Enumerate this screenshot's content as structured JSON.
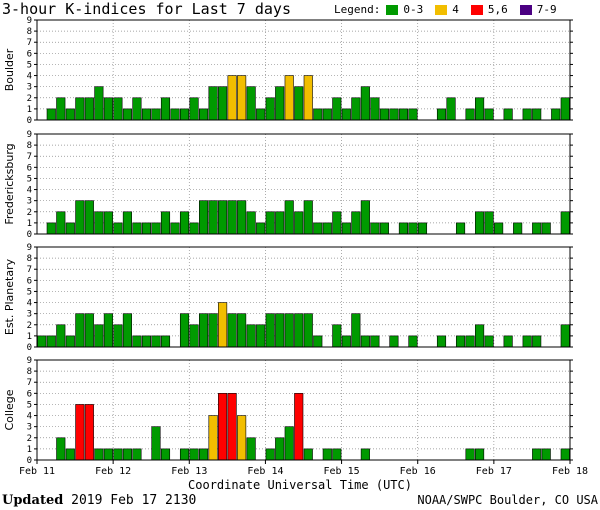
{
  "title": "3-hour K-indices for Last 7 days",
  "legend": {
    "label": "Legend:",
    "items": [
      {
        "label": "0-3",
        "color": "#009a00"
      },
      {
        "label": "4",
        "color": "#f2be00"
      },
      {
        "label": "5,6",
        "color": "#ff0000"
      },
      {
        "label": "7-9",
        "color": "#4b0082"
      }
    ]
  },
  "footer": {
    "updated_label": "Updated",
    "updated_value": "2019 Feb 17 2130",
    "credit": "NOAA/SWPC Boulder, CO USA"
  },
  "chart_data": {
    "type": "bar",
    "xlabel": "Coordinate Universal Time (UTC)",
    "x_ticks": [
      "Feb 11",
      "Feb 12",
      "Feb 13",
      "Feb 14",
      "Feb 15",
      "Feb 16",
      "Feb 17",
      "Feb 18"
    ],
    "ylim": [
      0,
      9
    ],
    "y_ticks": [
      "0",
      "1",
      "2",
      "3",
      "4",
      "5",
      "6",
      "7",
      "8",
      "9"
    ],
    "grid": true,
    "series": [
      {
        "name": "Boulder",
        "values": [
          0,
          1,
          2,
          1,
          2,
          2,
          3,
          2,
          2,
          1,
          2,
          1,
          1,
          2,
          1,
          1,
          2,
          1,
          3,
          3,
          4,
          4,
          3,
          1,
          2,
          3,
          4,
          3,
          4,
          1,
          1,
          2,
          1,
          2,
          3,
          2,
          1,
          1,
          1,
          1,
          0,
          0,
          1,
          2,
          0,
          1,
          2,
          1,
          0,
          1,
          0,
          1,
          1,
          0,
          1,
          2,
          0
        ]
      },
      {
        "name": "Fredericksburg",
        "values": [
          0,
          1,
          2,
          1,
          3,
          3,
          2,
          2,
          1,
          2,
          1,
          1,
          1,
          2,
          1,
          2,
          1,
          3,
          3,
          3,
          3,
          3,
          2,
          1,
          2,
          2,
          3,
          2,
          3,
          1,
          1,
          2,
          1,
          2,
          3,
          1,
          1,
          0,
          1,
          1,
          1,
          0,
          0,
          0,
          1,
          0,
          2,
          2,
          1,
          0,
          1,
          0,
          1,
          1,
          0,
          2,
          0
        ]
      },
      {
        "name": "Est. Planetary",
        "values": [
          1,
          1,
          2,
          1,
          3,
          3,
          2,
          3,
          2,
          3,
          1,
          1,
          1,
          1,
          0,
          3,
          2,
          3,
          3,
          4,
          3,
          3,
          2,
          2,
          3,
          3,
          3,
          3,
          3,
          1,
          0,
          2,
          1,
          3,
          1,
          1,
          0,
          1,
          0,
          1,
          0,
          0,
          1,
          0,
          1,
          1,
          2,
          1,
          0,
          1,
          0,
          1,
          1,
          0,
          0,
          2,
          0
        ]
      },
      {
        "name": "College",
        "values": [
          0,
          0,
          2,
          1,
          5,
          5,
          1,
          1,
          1,
          1,
          1,
          0,
          3,
          1,
          0,
          1,
          1,
          1,
          4,
          6,
          6,
          4,
          2,
          0,
          1,
          2,
          3,
          6,
          1,
          0,
          1,
          1,
          0,
          0,
          1,
          0,
          0,
          0,
          0,
          0,
          0,
          0,
          0,
          0,
          0,
          1,
          1,
          0,
          0,
          0,
          0,
          0,
          1,
          1,
          0,
          1,
          0
        ]
      }
    ]
  }
}
